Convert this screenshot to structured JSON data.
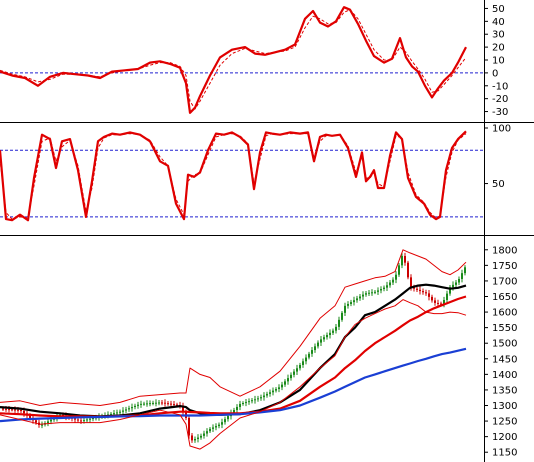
{
  "chart_data": [
    {
      "type": "line",
      "panel": "oscillator",
      "ylim": [
        -35,
        55
      ],
      "yticks": [
        50,
        40,
        30,
        20,
        10,
        0,
        -10,
        -20,
        -30
      ],
      "reference_lines": [
        0
      ],
      "grid": false,
      "x_index": [
        0,
        12,
        25,
        38,
        50,
        63,
        75,
        88,
        100,
        112,
        125,
        138,
        150,
        160,
        170,
        180,
        186,
        190,
        195,
        200,
        210,
        220,
        232,
        245,
        255,
        265,
        275,
        285,
        295,
        305,
        313,
        320,
        328,
        336,
        344,
        350,
        358,
        366,
        374,
        384,
        392,
        400,
        406,
        412,
        418,
        425,
        432,
        438,
        444,
        452,
        458,
        466
      ],
      "series": [
        {
          "style": "solid",
          "color": "#e00000",
          "values": [
            1,
            -2,
            -4,
            -10,
            -3,
            0,
            -1,
            -2,
            -4,
            1,
            2,
            3,
            8,
            9,
            7,
            4,
            -8,
            -31,
            -27,
            -18,
            -2,
            12,
            18,
            20,
            15,
            14,
            16,
            18,
            22,
            42,
            48,
            39,
            36,
            40,
            51,
            49,
            38,
            25,
            13,
            8,
            11,
            27,
            12,
            5,
            1,
            -10,
            -19,
            -12,
            -6,
            0,
            8,
            20
          ]
        },
        {
          "style": "dashed",
          "color": "#e00000",
          "values": [
            2,
            -1,
            -3,
            -7,
            -5,
            -1,
            -1,
            -2,
            -3,
            0,
            2,
            3,
            6,
            8,
            8,
            5,
            -2,
            -22,
            -28,
            -22,
            -8,
            6,
            15,
            19,
            17,
            15,
            16,
            17,
            20,
            35,
            44,
            42,
            38,
            39,
            47,
            49,
            42,
            30,
            18,
            10,
            10,
            20,
            16,
            9,
            3,
            -5,
            -15,
            -14,
            -9,
            -2,
            4,
            12
          ]
        }
      ]
    },
    {
      "type": "line",
      "panel": "stochastic",
      "ylim": [
        10,
        100
      ],
      "yticks": [
        100,
        50
      ],
      "reference_lines": [
        80,
        20
      ],
      "grid": false,
      "x_index": [
        0,
        6,
        12,
        20,
        28,
        34,
        42,
        50,
        56,
        62,
        70,
        78,
        86,
        92,
        98,
        104,
        112,
        120,
        130,
        140,
        150,
        160,
        168,
        176,
        184,
        188,
        194,
        200,
        208,
        216,
        224,
        232,
        240,
        248,
        254,
        260,
        266,
        272,
        280,
        290,
        300,
        308,
        314,
        320,
        326,
        332,
        340,
        348,
        356,
        362,
        366,
        370,
        374,
        378,
        384,
        390,
        396,
        402,
        408,
        416,
        424,
        430,
        436,
        440,
        446,
        452,
        458,
        466
      ],
      "series": [
        {
          "style": "solid",
          "color": "#e00000",
          "values": [
            80,
            18,
            17,
            22,
            17,
            55,
            94,
            90,
            64,
            88,
            90,
            62,
            20,
            52,
            88,
            92,
            95,
            94,
            96,
            94,
            88,
            70,
            66,
            32,
            18,
            58,
            56,
            60,
            80,
            95,
            94,
            96,
            92,
            85,
            45,
            78,
            96,
            95,
            94,
            96,
            95,
            96,
            70,
            92,
            94,
            93,
            94,
            82,
            56,
            78,
            52,
            56,
            62,
            46,
            46,
            75,
            96,
            90,
            55,
            38,
            32,
            22,
            18,
            20,
            62,
            82,
            90,
            97
          ]
        },
        {
          "style": "dashed",
          "color": "#e00000",
          "values": [
            72,
            24,
            18,
            20,
            19,
            48,
            88,
            91,
            70,
            83,
            89,
            66,
            25,
            46,
            82,
            91,
            94,
            94,
            95,
            94,
            89,
            74,
            66,
            36,
            22,
            52,
            58,
            59,
            76,
            92,
            94,
            95,
            93,
            86,
            50,
            72,
            93,
            95,
            94,
            95,
            95,
            95,
            74,
            88,
            93,
            93,
            94,
            84,
            60,
            74,
            55,
            55,
            60,
            50,
            47,
            70,
            93,
            91,
            60,
            40,
            33,
            24,
            19,
            21,
            56,
            78,
            89,
            95
          ]
        }
      ]
    },
    {
      "type": "line",
      "panel": "price",
      "ylim": [
        1125,
        1825
      ],
      "yticks": [
        1800,
        1750,
        1700,
        1650,
        1600,
        1550,
        1500,
        1450,
        1400,
        1350,
        1300,
        1250,
        1200,
        1150
      ],
      "grid": false,
      "x_index": [
        0,
        20,
        40,
        60,
        80,
        100,
        120,
        140,
        160,
        180,
        186,
        190,
        200,
        210,
        220,
        240,
        260,
        280,
        300,
        320,
        335,
        345,
        355,
        365,
        375,
        385,
        395,
        403,
        410,
        418,
        426,
        434,
        442,
        450,
        458,
        466
      ],
      "close": [
        1290,
        1285,
        1235,
        1270,
        1250,
        1265,
        1280,
        1305,
        1310,
        1300,
        1260,
        1185,
        1200,
        1225,
        1240,
        1305,
        1325,
        1360,
        1430,
        1510,
        1545,
        1620,
        1640,
        1660,
        1665,
        1680,
        1710,
        1790,
        1680,
        1670,
        1660,
        1630,
        1625,
        1680,
        1700,
        1750
      ],
      "series": [
        {
          "name": "",
          "color": "#000000",
          "style": "solid",
          "values": [
            1295,
            1290,
            1280,
            1275,
            1268,
            1265,
            1268,
            1275,
            1290,
            1298,
            1295,
            1285,
            1275,
            1270,
            1270,
            1272,
            1285,
            1310,
            1350,
            1420,
            1465,
            1520,
            1550,
            1590,
            1600,
            1620,
            1640,
            1660,
            1678,
            1685,
            1688,
            1685,
            1680,
            1675,
            1678,
            1685
          ]
        },
        {
          "name": "",
          "color": "#e00000",
          "style": "solid",
          "values": [
            1275,
            1272,
            1268,
            1265,
            1265,
            1264,
            1266,
            1268,
            1275,
            1280,
            1280,
            1279,
            1278,
            1276,
            1275,
            1275,
            1280,
            1290,
            1315,
            1360,
            1390,
            1420,
            1445,
            1475,
            1500,
            1520,
            1540,
            1558,
            1573,
            1585,
            1600,
            1612,
            1622,
            1632,
            1642,
            1650
          ]
        },
        {
          "name": "",
          "color": "#1a3fd4",
          "style": "solid",
          "values": [
            1250,
            1255,
            1258,
            1260,
            1262,
            1263,
            1265,
            1266,
            1268,
            1268,
            1268,
            1268,
            1268,
            1269,
            1270,
            1272,
            1278,
            1285,
            1300,
            1325,
            1345,
            1360,
            1375,
            1390,
            1400,
            1410,
            1420,
            1428,
            1435,
            1443,
            1450,
            1458,
            1465,
            1470,
            1476,
            1482
          ]
        },
        {
          "name": "",
          "color": "#e00000",
          "style": "thin",
          "values": [
            1310,
            1315,
            1300,
            1310,
            1305,
            1300,
            1310,
            1330,
            1335,
            1340,
            1340,
            1420,
            1400,
            1390,
            1360,
            1330,
            1360,
            1410,
            1490,
            1580,
            1620,
            1680,
            1690,
            1700,
            1710,
            1715,
            1730,
            1800,
            1790,
            1780,
            1770,
            1750,
            1730,
            1720,
            1735,
            1760
          ]
        },
        {
          "name": "",
          "color": "#e00000",
          "style": "thin",
          "values": [
            1270,
            1255,
            1240,
            1245,
            1245,
            1245,
            1255,
            1270,
            1285,
            1270,
            1240,
            1170,
            1160,
            1180,
            1210,
            1260,
            1280,
            1310,
            1360,
            1420,
            1460,
            1520,
            1560,
            1580,
            1595,
            1610,
            1620,
            1640,
            1630,
            1620,
            1600,
            1595,
            1595,
            1600,
            1598,
            1590
          ]
        }
      ]
    }
  ]
}
